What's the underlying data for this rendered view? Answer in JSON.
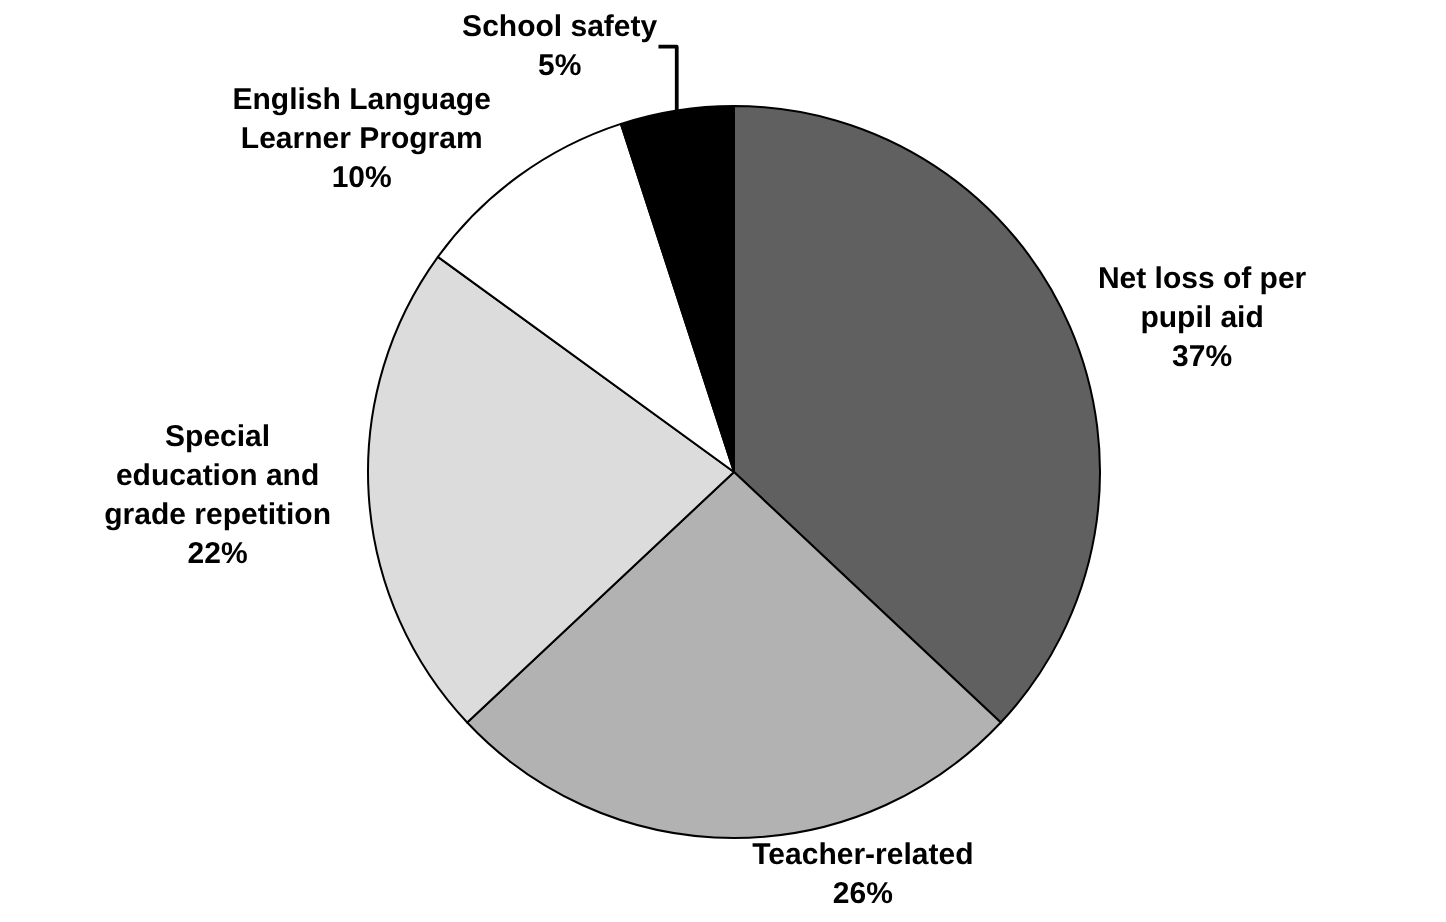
{
  "chart_data": {
    "type": "pie",
    "categories": [
      "Net loss of per pupil aid",
      "Teacher-related",
      "Special education and grade repetition",
      "English Language Learner Program",
      "School safety"
    ],
    "values": [
      37,
      26,
      22,
      10,
      5
    ],
    "value_labels": [
      "37%",
      "26%",
      "22%",
      "10%",
      "5%"
    ],
    "colors": [
      "#606060",
      "#b2b2b2",
      "#dcdcdc",
      "#ffffff",
      "#000000"
    ],
    "legend": false
  }
}
